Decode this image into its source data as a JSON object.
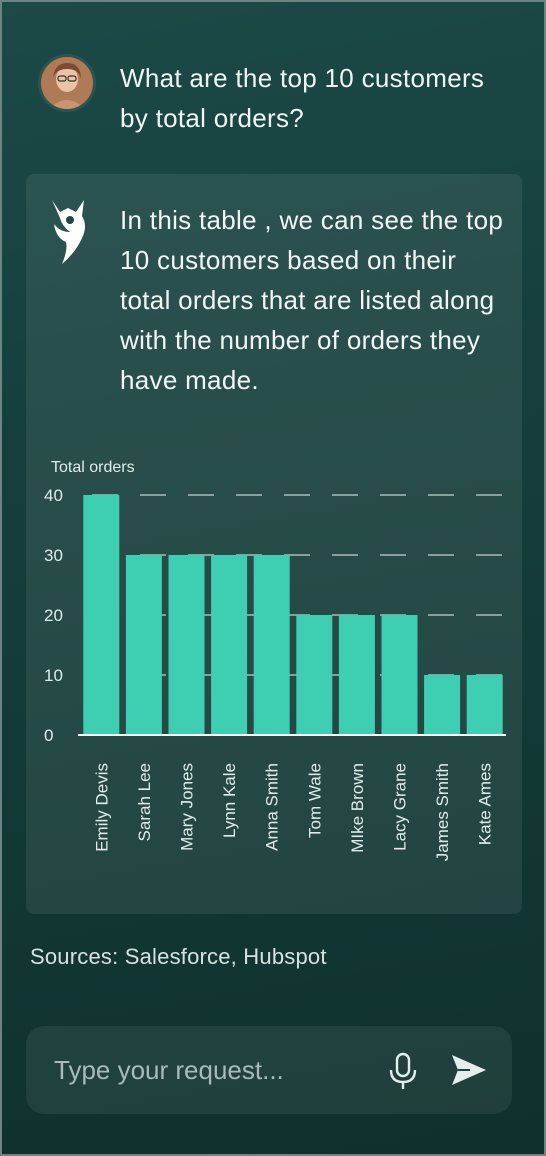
{
  "conversation": {
    "user_message": "What are the top 10 customers by total orders?",
    "assistant_message": "In this table , we can see the top 10 customers based on their total orders that are listed along with the number of orders they have made.",
    "sources": "Sources: Salesforce, Hubspot"
  },
  "composer": {
    "placeholder": "Type your request...",
    "mic_icon": "microphone-icon",
    "send_icon": "send-icon"
  },
  "colors": {
    "bar": "#3ecfb2",
    "accent": "#3ecfb2"
  },
  "chart_data": {
    "type": "bar",
    "ylabel": "Total orders",
    "categories": [
      "Emily Devis",
      "Sarah Lee",
      "Mary Jones",
      "Lynn Kale",
      "Anna Smith",
      "Tom Wale",
      "MIke Brown",
      "Lacy Grane",
      "James Smith",
      "Kate Ames"
    ],
    "values": [
      40,
      30,
      30,
      30,
      30,
      20,
      20,
      20,
      10,
      10
    ],
    "yticks": [
      0,
      10,
      20,
      30,
      40
    ],
    "ylim": [
      0,
      40
    ],
    "grid": "dashed"
  }
}
